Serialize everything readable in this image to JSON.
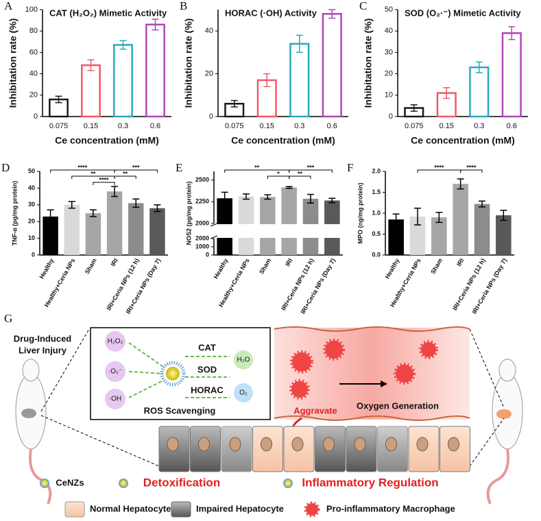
{
  "chart_data": [
    {
      "type": "bar",
      "panel": "A",
      "title": "CAT (H₂O₂) Mimetic Activity",
      "ylabel": "Inhibitation rate (%)",
      "xlabel": "Ce concentration (mM)",
      "categories": [
        "0.075",
        "0.15",
        "0.3",
        "0.6"
      ],
      "values": [
        16,
        48,
        67,
        86
      ],
      "errors": [
        3,
        5,
        4,
        5
      ],
      "colors": [
        "#1a1a1a",
        "#f05a64",
        "#2ba9bd",
        "#b046b8"
      ],
      "style": "outline",
      "ylim": [
        0,
        100
      ],
      "yticks": [
        0,
        20,
        40,
        60,
        80,
        100
      ]
    },
    {
      "type": "bar",
      "panel": "B",
      "title": "HORAC (·OH) Activity",
      "ylabel": "Inhibitation rate (%)",
      "xlabel": "Ce concentration (mM)",
      "categories": [
        "0.075",
        "0.15",
        "0.3",
        "0.6"
      ],
      "values": [
        6,
        17,
        34,
        48
      ],
      "errors": [
        1.5,
        3,
        4,
        2
      ],
      "colors": [
        "#1a1a1a",
        "#f05a64",
        "#2ba9bd",
        "#b046b8"
      ],
      "style": "outline",
      "ylim": [
        0,
        50
      ],
      "yticks": [
        0,
        20,
        40
      ]
    },
    {
      "type": "bar",
      "panel": "C",
      "title": "SOD (O₂·⁻) Mimetic Activity",
      "ylabel": "Inhibitation rate (%)",
      "xlabel": "Ce concentration (mM)",
      "categories": [
        "0.075",
        "0.15",
        "0.3",
        "0.6"
      ],
      "values": [
        4,
        11,
        23,
        39
      ],
      "errors": [
        1.5,
        2.5,
        2.5,
        3
      ],
      "colors": [
        "#1a1a1a",
        "#f05a64",
        "#2ba9bd",
        "#b046b8"
      ],
      "style": "outline",
      "ylim": [
        0,
        50
      ],
      "yticks": [
        0,
        10,
        20,
        30,
        40,
        50
      ]
    },
    {
      "type": "bar",
      "panel": "D",
      "ylabel": "TNF-α (pg/mg protein)",
      "categories": [
        "Healthy",
        "Healthy+Ceria NPs",
        "Sham",
        "IRI",
        "IRI+Ceria NPs (12 h)",
        "IRI+Ceria NPs (Day 7)"
      ],
      "values": [
        23,
        30,
        25,
        38,
        31,
        28
      ],
      "errors": [
        4,
        2,
        2,
        3,
        2.5,
        2
      ],
      "colors": [
        "#000000",
        "#d9d9d9",
        "#a6a6a6",
        "#a6a6a6",
        "#8c8c8c",
        "#595959"
      ],
      "style": "filled",
      "ylim": [
        0,
        50
      ],
      "yticks": [
        0,
        10,
        20,
        30,
        40,
        50
      ],
      "significance": [
        {
          "pair": [
            0,
            3
          ],
          "label": "****"
        },
        {
          "pair": [
            1,
            3
          ],
          "label": "**"
        },
        {
          "pair": [
            2,
            3
          ],
          "label": "****"
        },
        {
          "pair": [
            3,
            5
          ],
          "label": "***"
        },
        {
          "pair": [
            3,
            4
          ],
          "label": "**"
        }
      ]
    },
    {
      "type": "bar",
      "panel": "E",
      "ylabel": "NOS2 (pg/mg protein)",
      "categories": [
        "Healthy",
        "Healthy+Ceria NPs",
        "Sham",
        "IRI",
        "IRI+Ceria NPs (12 h)",
        "IRI+Ceria NPs (Day 7)"
      ],
      "values": [
        2290,
        2310,
        2305,
        2415,
        2285,
        2265
      ],
      "errors": [
        70,
        30,
        25,
        10,
        50,
        25
      ],
      "colors": [
        "#000000",
        "#d9d9d9",
        "#a6a6a6",
        "#a6a6a6",
        "#8c8c8c",
        "#595959"
      ],
      "style": "filled",
      "segments": [
        {
          "ylim": [
            0,
            2000
          ],
          "yticks": [
            0,
            1000,
            2000
          ]
        },
        {
          "ylim": [
            2000,
            2600
          ],
          "yticks": [
            2000,
            2250,
            2500
          ]
        }
      ],
      "significance": [
        {
          "pair": [
            0,
            3
          ],
          "label": "**"
        },
        {
          "pair": [
            2,
            3
          ],
          "label": "*"
        },
        {
          "pair": [
            3,
            5
          ],
          "label": "***"
        },
        {
          "pair": [
            3,
            4
          ],
          "label": "**"
        }
      ]
    },
    {
      "type": "bar",
      "panel": "F",
      "ylabel": "MPO (ng/mg protein)",
      "categories": [
        "Healthy",
        "Healthy+Ceria NPs",
        "Sham",
        "IRI",
        "IRI+Ceria NPs (12 h)",
        "IRI+Ceria NPs (Day 7)"
      ],
      "values": [
        0.85,
        0.92,
        0.9,
        1.7,
        1.22,
        0.95
      ],
      "errors": [
        0.13,
        0.2,
        0.12,
        0.12,
        0.07,
        0.12
      ],
      "colors": [
        "#000000",
        "#d9d9d9",
        "#a6a6a6",
        "#a6a6a6",
        "#8c8c8c",
        "#595959"
      ],
      "style": "filled",
      "ylim": [
        0,
        2
      ],
      "yticks": [
        {
          "value": 0,
          "label": "0.0"
        },
        {
          "value": 0.5,
          "label": "0.5"
        },
        {
          "value": 1,
          "label": "1.0"
        },
        {
          "value": 1.5,
          "label": "1.5"
        },
        {
          "value": 2,
          "label": "2.0"
        }
      ],
      "significance": [
        {
          "pair": [
            1,
            3
          ],
          "label": "****"
        },
        {
          "pair": [
            3,
            4
          ],
          "label": "****"
        }
      ]
    }
  ],
  "diagram": {
    "panel": "G",
    "injury": [
      "Drug-Induced",
      "Liver Injury"
    ],
    "ros": {
      "inputs": [
        "H₂O₂",
        "·O₂⁻",
        "·OH"
      ],
      "enzymes": [
        "CAT",
        "SOD",
        "HORAC"
      ],
      "products": [
        "H₂O",
        "O₂"
      ],
      "caption": "ROS Scavenging"
    },
    "aggravate": "Aggravate",
    "oxygen": "Oxygen Generation",
    "cenzs": "CeNZs",
    "detox": "Detoxification",
    "inflammation": "Inflammatory Regulation",
    "legend": [
      "Normal Hepatocyte",
      "Impaired Hepatocyte",
      "Pro-inflammatory Macrophage"
    ]
  }
}
